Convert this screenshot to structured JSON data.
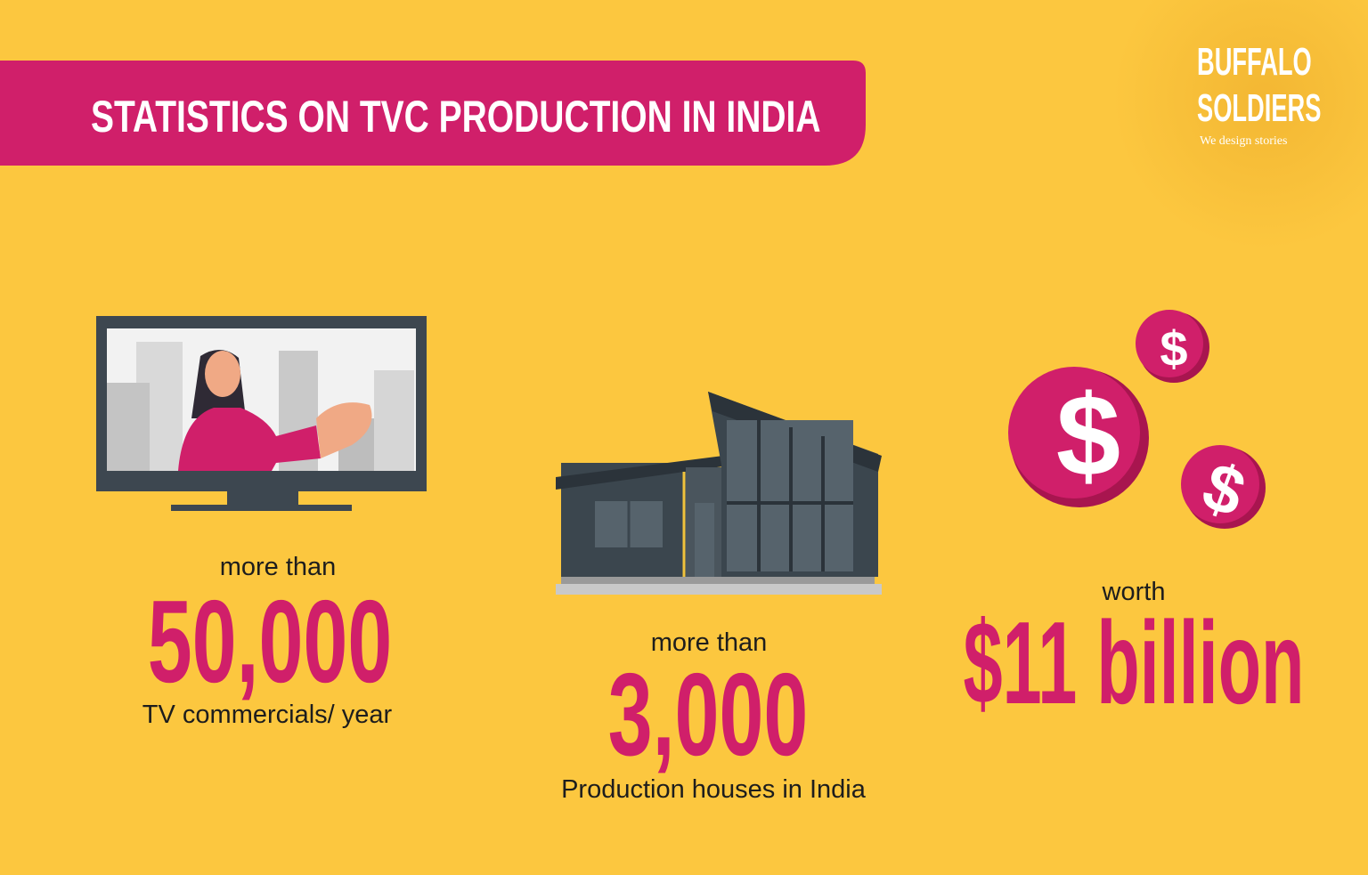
{
  "header": {
    "title": "STATISTICS ON TVC PRODUCTION IN INDIA"
  },
  "logo": {
    "line1": "BUFFALO",
    "line2": "SOLDIERS",
    "tagline": "We design stories"
  },
  "stats": [
    {
      "prefix": "more than",
      "figure": "50,000",
      "caption": "TV commercials/ year"
    },
    {
      "prefix": "more than",
      "figure": "3,000",
      "caption": "Production houses in India"
    },
    {
      "prefix": "worth",
      "figure": "$11 billion"
    }
  ],
  "coin_symbol": "$"
}
